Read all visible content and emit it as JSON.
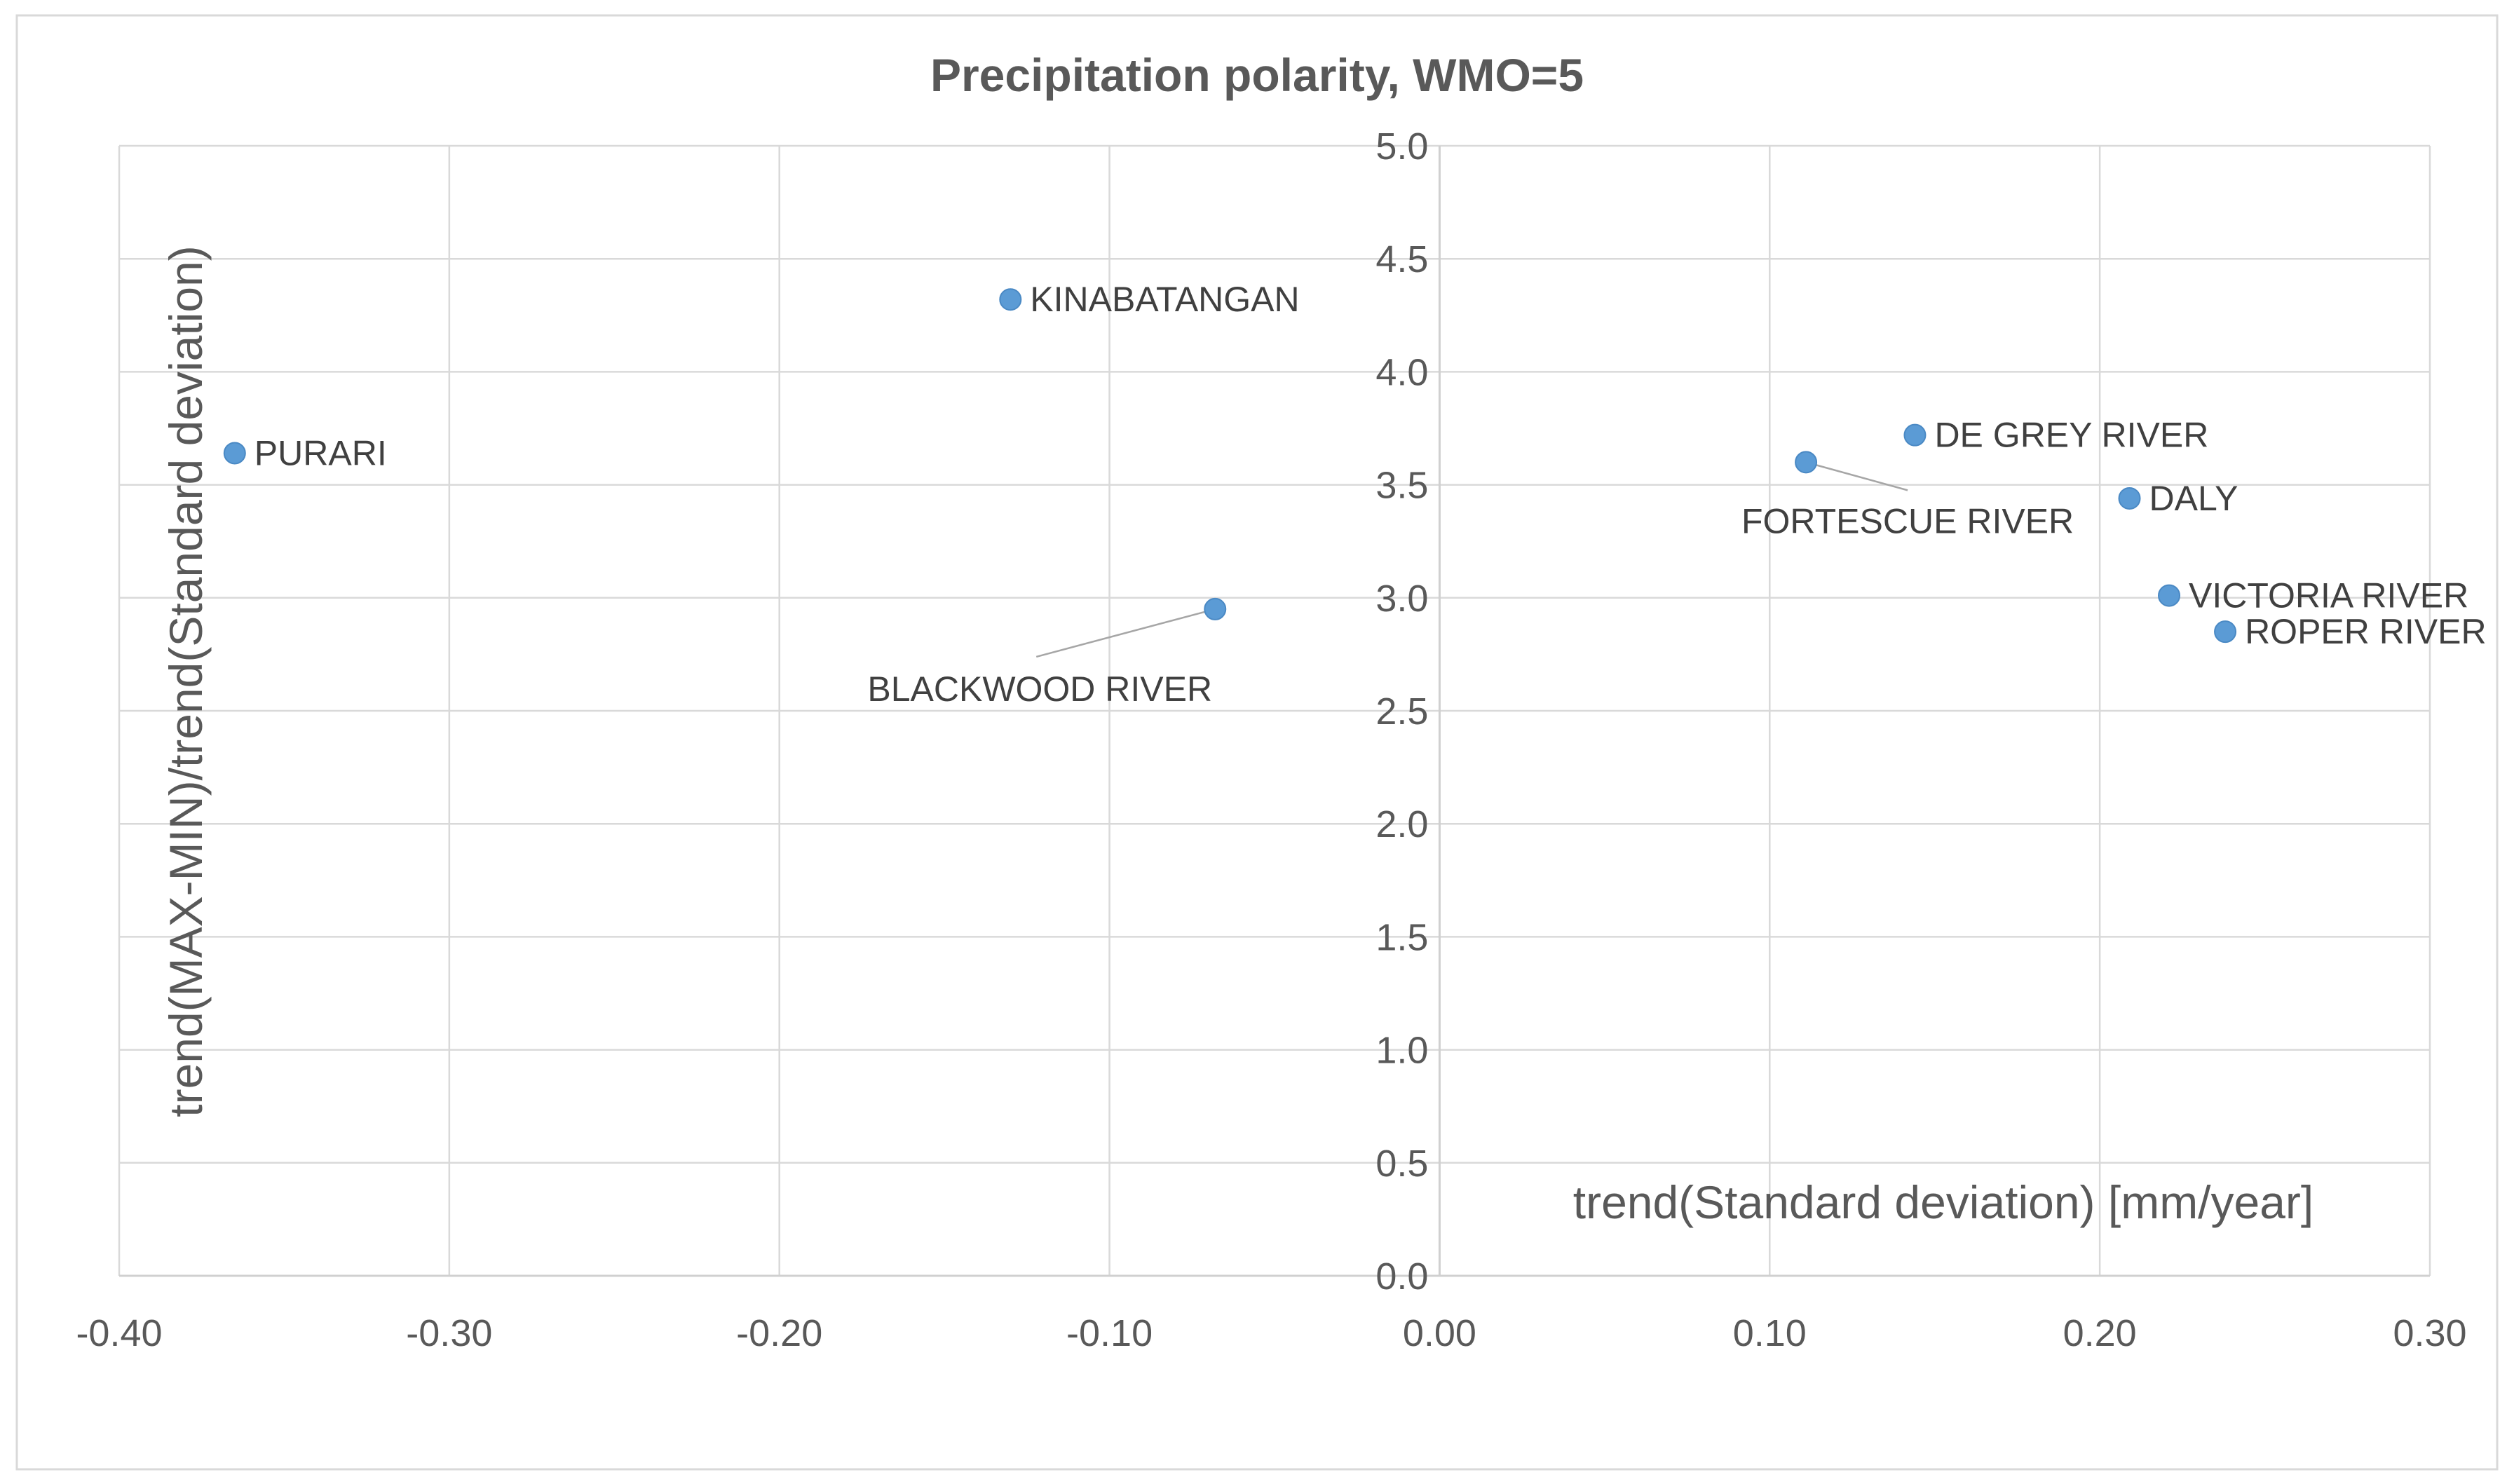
{
  "chart_data": {
    "type": "scatter",
    "title": "Precipitation polarity, WMO=5",
    "xlabel": "trend(Standard deviation) [mm/year]",
    "ylabel": "trend(MAX-MIN)/trend(Standard deviation)",
    "xlim": [
      -0.4,
      0.3
    ],
    "ylim": [
      0.0,
      5.0
    ],
    "x_ticks": [
      "-0.40",
      "-0.30",
      "-0.20",
      "-0.10",
      "0.00",
      "0.10",
      "0.20",
      "0.30"
    ],
    "y_ticks": [
      "0.0",
      "0.5",
      "1.0",
      "1.5",
      "2.0",
      "2.5",
      "3.0",
      "3.5",
      "4.0",
      "4.5",
      "5.0"
    ],
    "grid": true,
    "marker_color": "#5b9bd5",
    "points": [
      {
        "label": "PURARI",
        "x": -0.365,
        "y": 3.64
      },
      {
        "label": "KINABATANGAN",
        "x": -0.13,
        "y": 4.32
      },
      {
        "label": "BLACKWOOD RIVER",
        "x": -0.068,
        "y": 2.95
      },
      {
        "label": "FORTESCUE RIVER",
        "x": 0.111,
        "y": 3.6
      },
      {
        "label": "DE GREY RIVER",
        "x": 0.144,
        "y": 3.72
      },
      {
        "label": "DALY",
        "x": 0.209,
        "y": 3.44
      },
      {
        "label": "VICTORIA RIVER",
        "x": 0.221,
        "y": 3.01
      },
      {
        "label": "ROPER RIVER",
        "x": 0.238,
        "y": 2.85
      }
    ]
  }
}
